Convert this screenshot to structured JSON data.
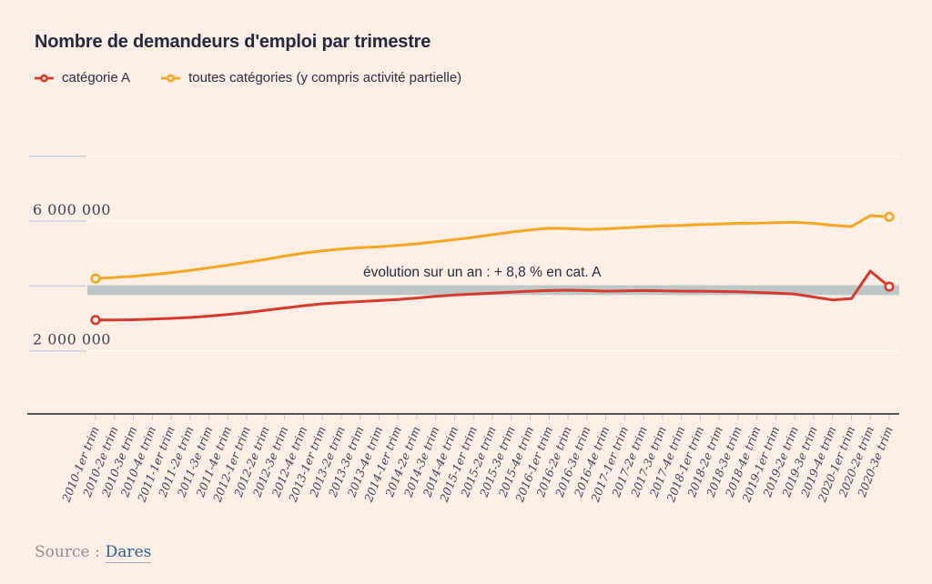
{
  "title": "Nombre de demandeurs d'emploi par trimestre",
  "legend": [
    {
      "label": "catégorie A",
      "color": "#d8392f"
    },
    {
      "label": "toutes catégories (y compris activité partielle)",
      "color": "#f7a621"
    }
  ],
  "source": {
    "prefix": "Source :",
    "link": "Dares"
  },
  "colors": {
    "background": "#fdeee6",
    "axis": "#54565e",
    "tick": "#c3c9dd",
    "gridline_stub": "#c9cfe4"
  },
  "chart_data": {
    "type": "line",
    "title": "Nombre de demandeurs d'emploi par trimestre",
    "annotation": "évolution sur un an : + 8,8 % en cat. A",
    "xlabel": "",
    "ylabel": "",
    "ylim": [
      0,
      8500000
    ],
    "grid": "horizontal",
    "legend_position": "top",
    "yticks": [
      {
        "value": 8000000,
        "label": ""
      },
      {
        "value": 6000000,
        "label": "6 000 000"
      },
      {
        "value": 4000000,
        "label": ""
      },
      {
        "value": 2000000,
        "label": "2 000 000"
      }
    ],
    "highlight_band": {
      "from": 3720000,
      "to": 4020000,
      "color": "#bcc8c8"
    },
    "categories": [
      "2010-1er trim",
      "2010-2e trim",
      "2010-3e trim",
      "2010-4e trim",
      "2011-1er trim",
      "2011-2e trim",
      "2011-3e trim",
      "2011-4e trim",
      "2012-1er trim",
      "2012-2e trim",
      "2012-3e trim",
      "2012-4e trim",
      "2013-1er trim",
      "2013-2e trim",
      "2013-3e trim",
      "2013-4e trim",
      "2014-1er trim",
      "2014-2e trim",
      "2014-3e trim",
      "2014-4e trim",
      "2015-1er trim",
      "2015-2e trim",
      "2015-3e trim",
      "2015-4e trim",
      "2016-1er trim",
      "2016-2e trim",
      "2016-3e trim",
      "2016-4e trim",
      "2017-1er trim",
      "2017-2e trim",
      "2017-3e trim",
      "2017-4e trim",
      "2018-1er trim",
      "2018-2e trim",
      "2018-3e trim",
      "2018-4e trim",
      "2019-1er trim",
      "2019-2e trim",
      "2019-3e trim",
      "2019-4e trim",
      "2020-1er trim",
      "2020-2e trim",
      "2020-3e trim"
    ],
    "series": [
      {
        "name": "catégorie A",
        "color": "#d8392f",
        "values": [
          2950000,
          2950000,
          2960000,
          2980000,
          3000000,
          3030000,
          3070000,
          3120000,
          3180000,
          3250000,
          3320000,
          3390000,
          3450000,
          3490000,
          3520000,
          3550000,
          3580000,
          3630000,
          3680000,
          3720000,
          3750000,
          3780000,
          3810000,
          3840000,
          3860000,
          3870000,
          3860000,
          3840000,
          3850000,
          3860000,
          3850000,
          3840000,
          3840000,
          3830000,
          3820000,
          3800000,
          3780000,
          3750000,
          3660000,
          3570000,
          3610000,
          4460000,
          3980000
        ]
      },
      {
        "name": "toutes catégories (y compris activité partielle)",
        "color": "#f7a621",
        "values": [
          4230000,
          4260000,
          4300000,
          4350000,
          4410000,
          4480000,
          4560000,
          4640000,
          4730000,
          4820000,
          4920000,
          5010000,
          5080000,
          5140000,
          5180000,
          5210000,
          5250000,
          5300000,
          5360000,
          5430000,
          5500000,
          5580000,
          5660000,
          5730000,
          5780000,
          5770000,
          5740000,
          5760000,
          5790000,
          5820000,
          5850000,
          5870000,
          5890000,
          5910000,
          5930000,
          5940000,
          5950000,
          5960000,
          5930000,
          5870000,
          5830000,
          6170000,
          6130000
        ]
      }
    ]
  }
}
